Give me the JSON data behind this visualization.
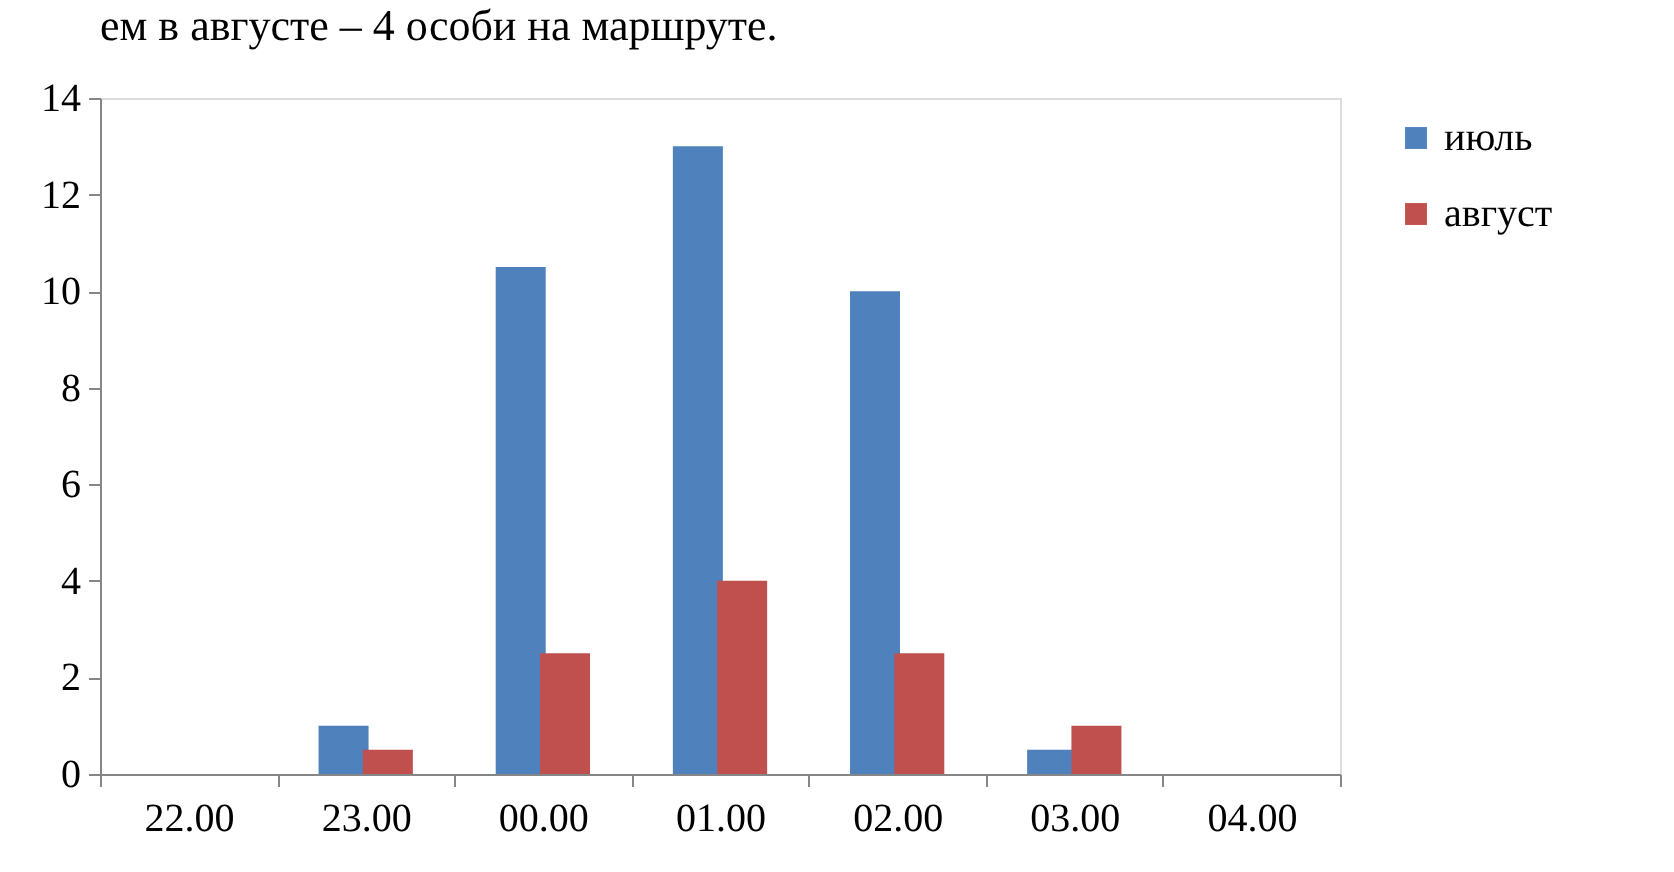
{
  "chart_data": {
    "type": "bar",
    "annotations": [
      "ем в августе – 4 особи на маршруте."
    ],
    "categories": [
      "22.00",
      "23.00",
      "00.00",
      "01.00",
      "02.00",
      "03.00",
      "04.00"
    ],
    "series": [
      {
        "name": "июль",
        "color": "#4f81bd",
        "values": [
          0,
          1,
          10.5,
          13,
          10,
          0.5,
          0
        ]
      },
      {
        "name": "август",
        "color": "#c0504d",
        "values": [
          0,
          0.5,
          2.5,
          4,
          2.5,
          1,
          0
        ]
      }
    ],
    "ylim": [
      0,
      14
    ],
    "yticks": [
      0,
      2,
      4,
      6,
      8,
      10,
      12,
      14
    ],
    "grid": false,
    "legend": "right"
  }
}
